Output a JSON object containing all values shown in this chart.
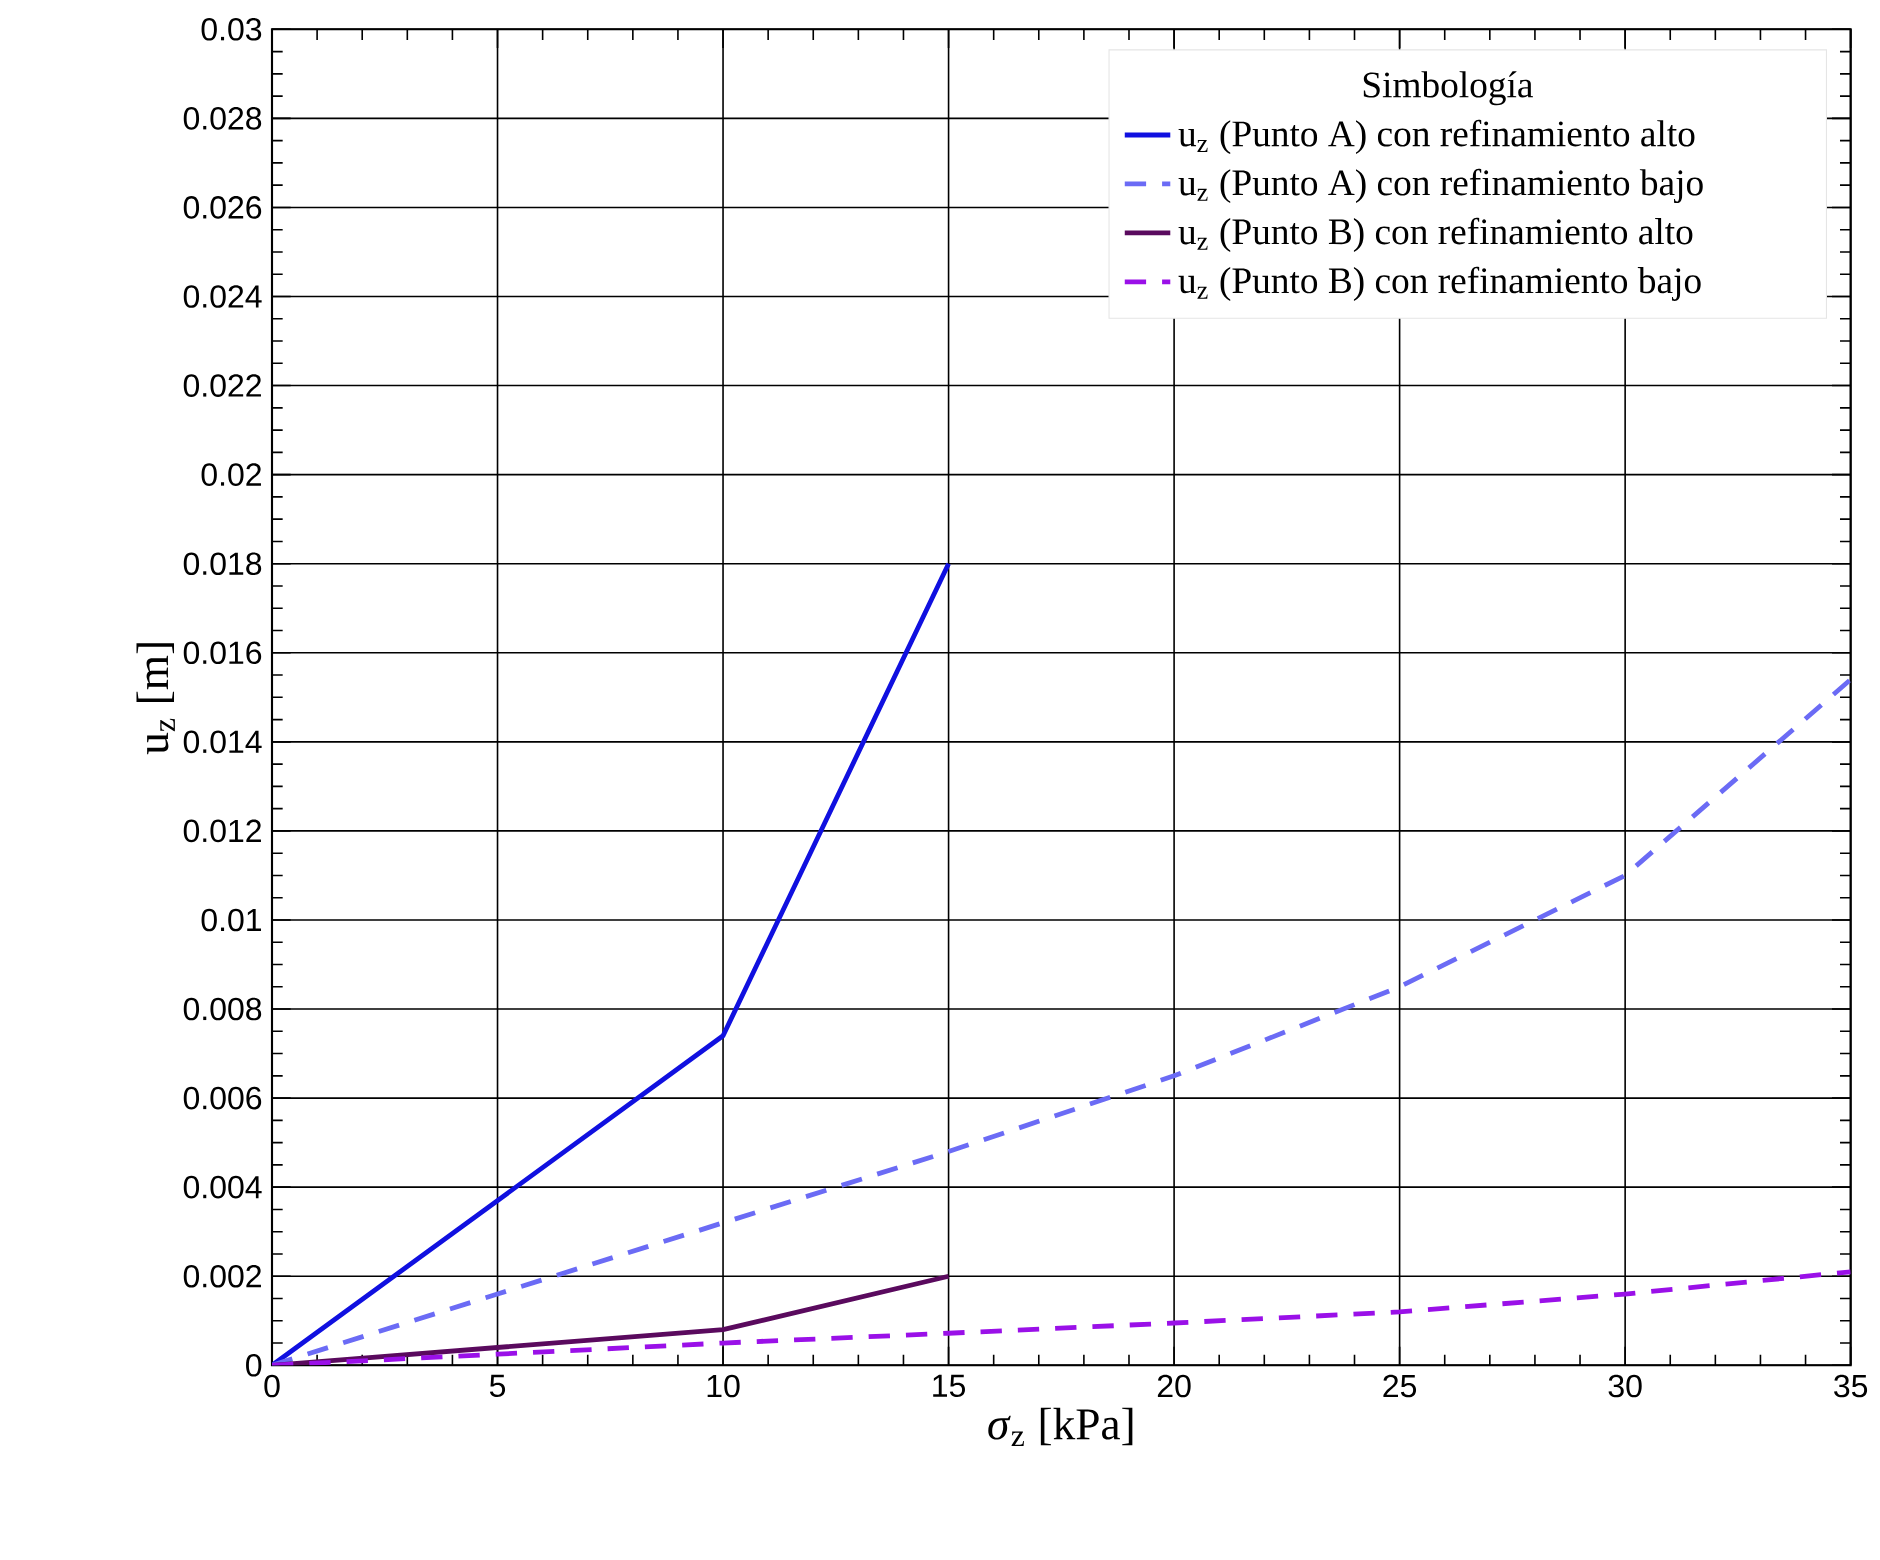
{
  "chart_data": {
    "type": "line",
    "xlabel": "*σ*$_{z}$ [kPa]",
    "ylabel": "u$_{z}$ [m]",
    "legend_title": "Simbología",
    "xlim": [
      0,
      35
    ],
    "ylim": [
      0,
      0.03
    ],
    "xticks": [
      0,
      5,
      10,
      15,
      20,
      25,
      30,
      35
    ],
    "yticks": [
      0,
      0.002,
      0.004,
      0.006,
      0.008,
      0.01,
      0.012,
      0.014,
      0.016,
      0.018,
      0.02,
      0.022,
      0.024,
      0.026,
      0.028,
      0.03
    ],
    "grid": true,
    "legend": "top right",
    "marker": "none",
    "series": [
      {
        "name": "u$_{z}$ (Punto A) con refinamiento alto",
        "color": "#1010e0",
        "line_style": "solid",
        "x": [
          0,
          10,
          15
        ],
        "values": [
          0,
          0.0074,
          0.018
        ]
      },
      {
        "name": "u$_{z}$ (Punto A) con refinamiento bajo",
        "color": "#6b6bf5",
        "line_style": "dashed",
        "x": [
          0,
          5,
          10,
          15,
          20,
          25,
          30,
          35
        ],
        "values": [
          0,
          0.0016,
          0.0032,
          0.0048,
          0.0065,
          0.0085,
          0.011,
          0.0154
        ]
      },
      {
        "name": "u$_{z}$ (Punto B) con refinamiento alto",
        "color": "#5a0a5e",
        "line_style": "solid",
        "x": [
          0,
          10,
          15
        ],
        "values": [
          0,
          0.0008,
          0.002
        ]
      },
      {
        "name": "u$_{z}$ (Punto B) con refinamiento bajo",
        "color": "#9a10e8",
        "line_style": "dashed",
        "x": [
          0,
          5,
          10,
          15,
          20,
          25,
          30,
          35
        ],
        "values": [
          0,
          0.00025,
          0.0005,
          0.00072,
          0.00095,
          0.0012,
          0.0016,
          0.0021
        ]
      }
    ]
  }
}
